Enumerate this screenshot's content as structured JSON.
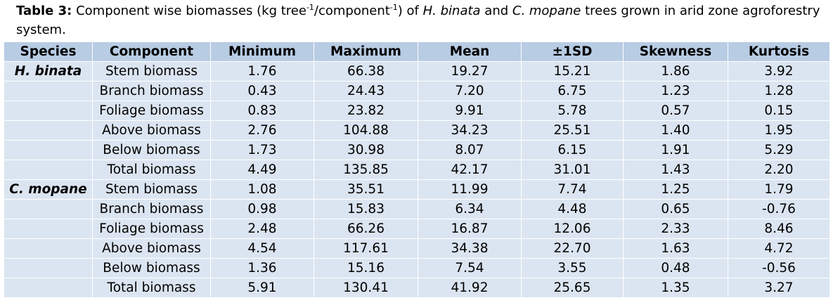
{
  "caption": {
    "label": "Table 3:",
    "t1": " Component wise biomasses (kg tree",
    "sup1": "-1",
    "t2": "/component",
    "sup2": "-1",
    "t3": ") of ",
    "sp1": "H. binata",
    "t4": " and ",
    "sp2": "C. mopane",
    "t5": " trees grown in arid zone agroforestry system."
  },
  "headers": [
    "Species",
    "Component",
    "Minimum",
    "Maximum",
    "Mean",
    "±1SD",
    "Skewness",
    "Kurtosis"
  ],
  "rows": [
    {
      "species": "H. binata",
      "cells": [
        "Stem biomass",
        "1.76",
        "66.38",
        "19.27",
        "15.21",
        "1.86",
        "3.92"
      ]
    },
    {
      "species": "",
      "cells": [
        "Branch biomass",
        "0.43",
        "24.43",
        "7.20",
        "6.75",
        "1.23",
        "1.28"
      ]
    },
    {
      "species": "",
      "cells": [
        "Foliage biomass",
        "0.83",
        "23.82",
        "9.91",
        "5.78",
        "0.57",
        "0.15"
      ]
    },
    {
      "species": "",
      "cells": [
        "Above biomass",
        "2.76",
        "104.88",
        "34.23",
        "25.51",
        "1.40",
        "1.95"
      ]
    },
    {
      "species": "",
      "cells": [
        "Below biomass",
        "1.73",
        "30.98",
        "8.07",
        "6.15",
        "1.91",
        "5.29"
      ]
    },
    {
      "species": "",
      "cells": [
        "Total biomass",
        "4.49",
        "135.85",
        "42.17",
        "31.01",
        "1.43",
        "2.20"
      ]
    },
    {
      "species": "C. mopane",
      "cells": [
        "Stem biomass",
        "1.08",
        "35.51",
        "11.99",
        "7.74",
        "1.25",
        "1.79"
      ]
    },
    {
      "species": "",
      "cells": [
        "Branch biomass",
        "0.98",
        "15.83",
        "6.34",
        "4.48",
        "0.65",
        "-0.76"
      ]
    },
    {
      "species": "",
      "cells": [
        "Foliage biomass",
        "2.48",
        "66.26",
        "16.87",
        "12.06",
        "2.33",
        "8.46"
      ]
    },
    {
      "species": "",
      "cells": [
        "Above biomass",
        "4.54",
        "117.61",
        "34.38",
        "22.70",
        "1.63",
        "4.72"
      ]
    },
    {
      "species": "",
      "cells": [
        "Below biomass",
        "1.36",
        "15.16",
        "7.54",
        "3.55",
        "0.48",
        "-0.56"
      ]
    },
    {
      "species": "",
      "cells": [
        "Total biomass",
        "5.91",
        "130.41",
        "41.92",
        "25.65",
        "1.35",
        "3.27"
      ]
    }
  ],
  "colors": {
    "header_bg": "#b8cce4",
    "cell_bg": "#dbe5f1",
    "grid": "#ffffff"
  }
}
